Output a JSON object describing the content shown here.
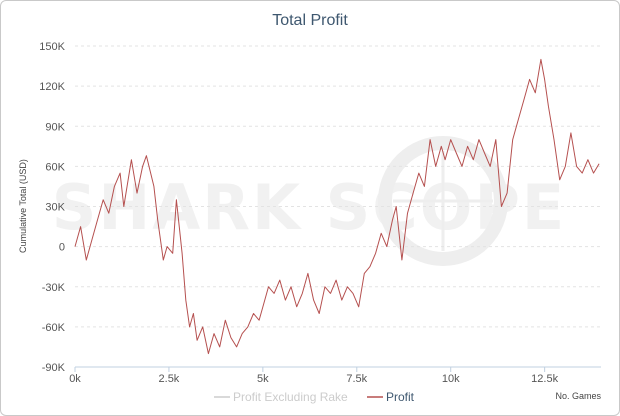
{
  "colors": {
    "profit": "#b5504f",
    "profit_excluding_rake": "#cccccc",
    "title": "#3e576f",
    "grid": "#e3e3e3"
  },
  "watermark": "SHARK SCOPE",
  "chart_data": {
    "type": "line",
    "title": "Total Profit",
    "xlabel": "No. Games",
    "ylabel": "Cumulative Total (USD)",
    "xlim": [
      0,
      14000
    ],
    "ylim": [
      -90000,
      150000
    ],
    "x_ticks": [
      0,
      2500,
      5000,
      7500,
      10000,
      12500
    ],
    "x_tick_labels": [
      "0k",
      "2.5k",
      "5k",
      "7.5k",
      "10k",
      "12.5k"
    ],
    "y_ticks": [
      150000,
      120000,
      90000,
      60000,
      30000,
      0,
      -30000,
      -60000,
      -90000
    ],
    "y_tick_labels": [
      "150K",
      "120K",
      "90K",
      "60K",
      "30K",
      "0",
      "-30K",
      "-60K",
      "-90K"
    ],
    "grid": true,
    "legend_position": "bottom-center",
    "series": [
      {
        "name": "Profit Excluding Rake",
        "values": []
      },
      {
        "name": "Profit",
        "x": [
          0,
          150,
          300,
          450,
          600,
          750,
          900,
          1050,
          1200,
          1300,
          1500,
          1650,
          1800,
          1900,
          2100,
          2200,
          2350,
          2450,
          2600,
          2700,
          2850,
          2950,
          3050,
          3150,
          3250,
          3400,
          3550,
          3700,
          3850,
          4000,
          4150,
          4300,
          4450,
          4600,
          4750,
          4900,
          5000,
          5150,
          5300,
          5450,
          5600,
          5750,
          5900,
          6050,
          6200,
          6350,
          6500,
          6650,
          6800,
          6950,
          7100,
          7250,
          7400,
          7550,
          7700,
          7850,
          8000,
          8150,
          8300,
          8450,
          8550,
          8700,
          8850,
          9000,
          9150,
          9300,
          9450,
          9600,
          9750,
          9850,
          10000,
          10150,
          10300,
          10450,
          10600,
          10750,
          10900,
          11050,
          11200,
          11350,
          11500,
          11650,
          11800,
          11950,
          12100,
          12250,
          12400,
          12500,
          12600,
          12750,
          12900,
          13050,
          13200,
          13350,
          13500,
          13650,
          13800,
          13950
        ],
        "values": [
          0,
          15000,
          -10000,
          5000,
          20000,
          35000,
          25000,
          45000,
          55000,
          30000,
          65000,
          40000,
          60000,
          68000,
          45000,
          20000,
          -10000,
          0,
          -5000,
          35000,
          -5000,
          -40000,
          -60000,
          -50000,
          -70000,
          -60000,
          -80000,
          -65000,
          -75000,
          -55000,
          -68000,
          -75000,
          -65000,
          -60000,
          -50000,
          -55000,
          -45000,
          -30000,
          -35000,
          -25000,
          -40000,
          -30000,
          -45000,
          -35000,
          -20000,
          -40000,
          -50000,
          -30000,
          -35000,
          -25000,
          -40000,
          -30000,
          -35000,
          -45000,
          -20000,
          -15000,
          -5000,
          10000,
          0,
          20000,
          30000,
          -10000,
          25000,
          40000,
          55000,
          45000,
          80000,
          60000,
          75000,
          65000,
          80000,
          70000,
          60000,
          75000,
          65000,
          80000,
          70000,
          60000,
          80000,
          30000,
          40000,
          80000,
          95000,
          110000,
          125000,
          115000,
          140000,
          125000,
          105000,
          80000,
          50000,
          60000,
          85000,
          60000,
          55000,
          65000,
          55000,
          62000
        ]
      }
    ]
  }
}
